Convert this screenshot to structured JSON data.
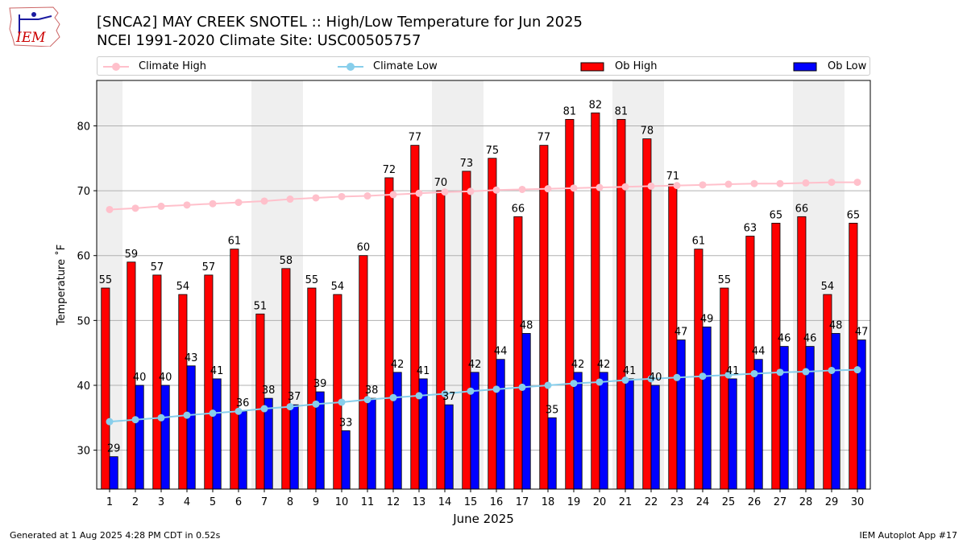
{
  "header": {
    "title_line1": "[SNCA2] MAY CREEK SNOTEL :: High/Low Temperature for Jun 2025",
    "title_line2": "NCEI 1991-2020 Climate Site: USC00505757",
    "logo_text": "IEM"
  },
  "footer": {
    "generated": "Generated at 1 Aug 2025 4:28 PM CDT in 0.52s",
    "app": "IEM Autoplot App #17"
  },
  "colors": {
    "ob_high": "#ff0000",
    "ob_low": "#0000ff",
    "climate_high": "#ffc0cb",
    "climate_low": "#87ceeb",
    "weekend_shade": "#efefef",
    "logo": "#cc0000"
  },
  "chart_data": {
    "type": "bar",
    "xlabel": "June 2025",
    "ylabel": "Temperature ˚F",
    "ylim": [
      24,
      87
    ],
    "yticks": [
      30,
      40,
      50,
      60,
      70,
      80
    ],
    "grid": true,
    "legend_position": "top",
    "categories": [
      "1",
      "2",
      "3",
      "4",
      "5",
      "6",
      "7",
      "8",
      "9",
      "10",
      "11",
      "12",
      "13",
      "14",
      "15",
      "16",
      "17",
      "18",
      "19",
      "20",
      "21",
      "22",
      "23",
      "24",
      "25",
      "26",
      "27",
      "28",
      "29",
      "30"
    ],
    "shaded_days": [
      1,
      7,
      8,
      14,
      15,
      21,
      22,
      28,
      29
    ],
    "series": [
      {
        "name": "Ob High",
        "kind": "bar",
        "color": "#ff0000",
        "values": [
          55,
          59,
          57,
          54,
          57,
          61,
          51,
          58,
          55,
          54,
          60,
          72,
          77,
          70,
          73,
          75,
          66,
          77,
          81,
          82,
          81,
          78,
          71,
          61,
          55,
          63,
          65,
          66,
          54,
          65
        ]
      },
      {
        "name": "Ob Low",
        "kind": "bar",
        "color": "#0000ff",
        "values": [
          29,
          40,
          40,
          43,
          41,
          36,
          38,
          37,
          39,
          33,
          38,
          42,
          41,
          37,
          42,
          44,
          48,
          35,
          42,
          42,
          41,
          40,
          47,
          49,
          41,
          44,
          46,
          46,
          48,
          47
        ]
      },
      {
        "name": "Climate High",
        "kind": "line",
        "color": "#ffc0cb",
        "values": [
          67.1,
          67.3,
          67.6,
          67.8,
          68.0,
          68.2,
          68.4,
          68.7,
          68.9,
          69.1,
          69.2,
          69.4,
          69.6,
          69.8,
          69.9,
          70.1,
          70.2,
          70.3,
          70.4,
          70.5,
          70.6,
          70.7,
          70.8,
          70.9,
          71.0,
          71.1,
          71.1,
          71.2,
          71.3,
          71.3
        ]
      },
      {
        "name": "Climate Low",
        "kind": "line",
        "color": "#87ceeb",
        "values": [
          34.4,
          34.7,
          35.0,
          35.4,
          35.7,
          36.0,
          36.4,
          36.7,
          37.1,
          37.4,
          37.8,
          38.1,
          38.4,
          38.7,
          39.1,
          39.4,
          39.7,
          40.0,
          40.3,
          40.5,
          40.8,
          41.0,
          41.2,
          41.4,
          41.6,
          41.8,
          42.0,
          42.1,
          42.3,
          42.4
        ]
      }
    ]
  }
}
